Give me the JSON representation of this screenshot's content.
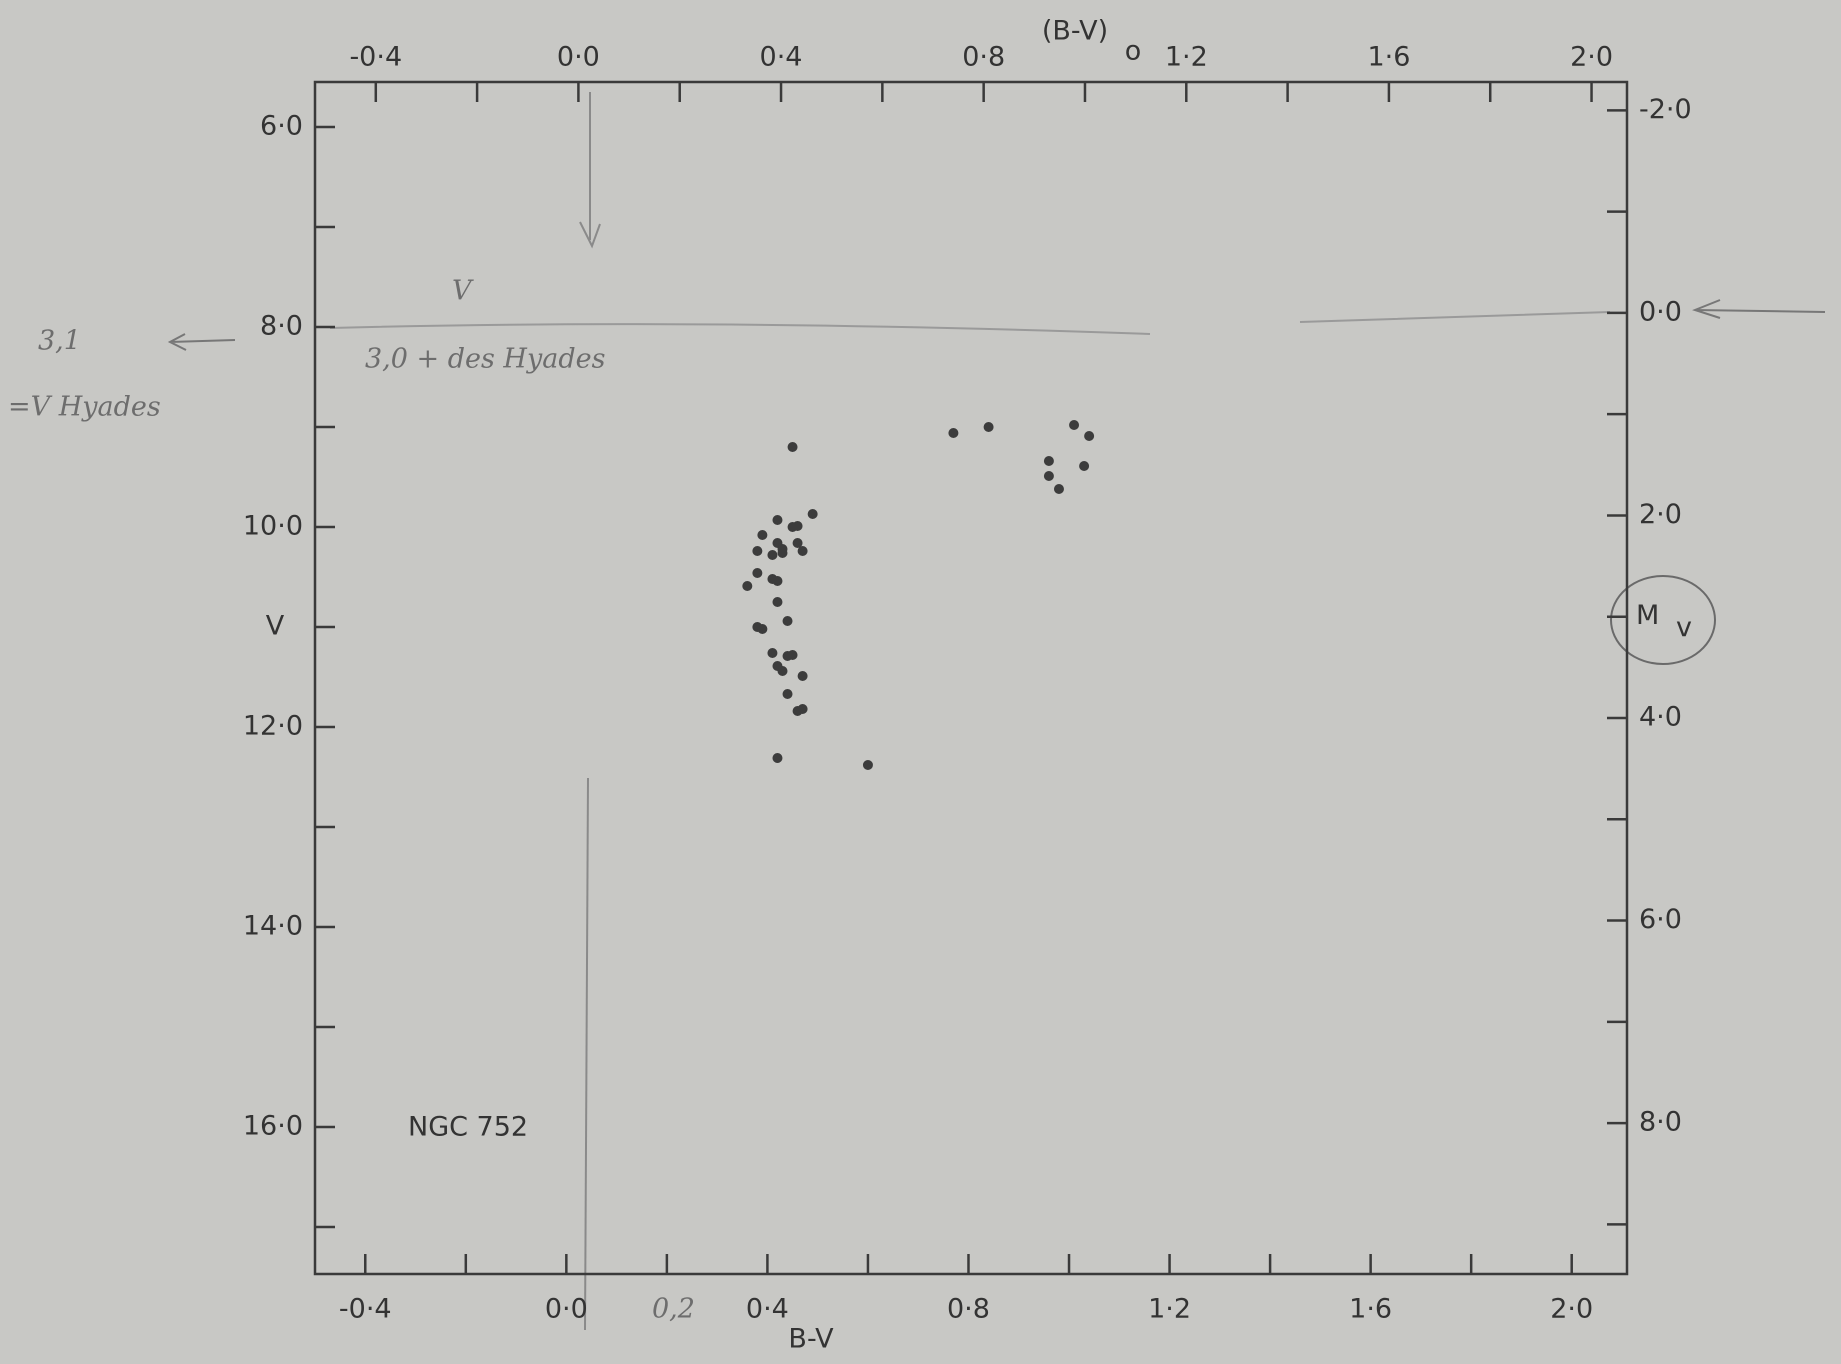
{
  "chart_data": {
    "type": "scatter",
    "xlabel": "B-V",
    "ylabel": "V",
    "x2label": "(B-V)",
    "x2label_sub": "o",
    "y2label": "M",
    "y2label_sub": "v",
    "color": "#3c3c3c",
    "x": [
      0.45,
      0.42,
      0.45,
      0.46,
      0.49,
      0.39,
      0.38,
      0.42,
      0.43,
      0.41,
      0.43,
      0.46,
      0.47,
      0.38,
      0.41,
      0.42,
      0.36,
      0.42,
      0.44,
      0.38,
      0.39,
      0.41,
      0.44,
      0.45,
      0.42,
      0.43,
      0.47,
      0.44,
      0.46,
      0.47,
      0.42,
      0.6,
      0.77,
      0.84,
      1.01,
      1.04,
      0.96,
      0.96,
      1.03,
      0.98
    ],
    "values": [
      9.2,
      9.93,
      10.0,
      9.99,
      9.87,
      10.08,
      10.24,
      10.16,
      10.22,
      10.28,
      10.26,
      10.16,
      10.24,
      10.46,
      10.52,
      10.54,
      10.59,
      10.75,
      10.94,
      11.0,
      11.02,
      11.26,
      11.29,
      11.28,
      11.39,
      11.44,
      11.49,
      11.67,
      11.84,
      11.82,
      12.31,
      12.38,
      9.06,
      9.0,
      8.98,
      9.09,
      9.34,
      9.49,
      9.39,
      9.62
    ],
    "xlim": [
      -0.5,
      2.11
    ],
    "ylim": [
      17.47,
      5.55
    ],
    "x2lim": [
      -0.52,
      2.07
    ],
    "y2lim": [
      9.49,
      -2.28
    ],
    "xticks": [
      {
        "value": -0.4,
        "label": "-0·4"
      },
      {
        "value": 0,
        "label": "0·0"
      },
      {
        "value": 0.4,
        "label": "0·4"
      },
      {
        "value": 0.8,
        "label": "0·8"
      },
      {
        "value": 1.2,
        "label": "1·2"
      },
      {
        "value": 1.6,
        "label": "1·6"
      },
      {
        "value": 2.0,
        "label": "2·0"
      }
    ],
    "xminorticks": [
      -0.2,
      0.2,
      0.6,
      1.0,
      1.4,
      1.8
    ],
    "yticks": [
      {
        "value": 6,
        "label": "6·0"
      },
      {
        "value": 8,
        "label": "8·0"
      },
      {
        "value": 10,
        "label": "10·0"
      },
      {
        "value": 12,
        "label": "12·0"
      },
      {
        "value": 14,
        "label": "14·0"
      },
      {
        "value": 16,
        "label": "16·0"
      }
    ],
    "yminorticks": [
      7,
      9,
      11,
      13,
      15,
      17
    ],
    "x2ticks": [
      {
        "value": -0.4,
        "label": "-0·4"
      },
      {
        "value": 0,
        "label": "0·0"
      },
      {
        "value": 0.4,
        "label": "0·4"
      },
      {
        "value": 0.8,
        "label": "0·8"
      },
      {
        "value": 1.2,
        "label": "1·2"
      },
      {
        "value": 1.6,
        "label": "1·6"
      },
      {
        "value": 2.0,
        "label": "2·0"
      }
    ],
    "x2minorticks": [
      -0.2,
      0.2,
      0.6,
      1.0,
      1.4,
      1.8
    ],
    "y2ticks": [
      {
        "value": -2,
        "label": "-2·0"
      },
      {
        "value": 0,
        "label": "0·0"
      },
      {
        "value": 2,
        "label": "2·0"
      },
      {
        "value": 4,
        "label": "4·0"
      },
      {
        "value": 6,
        "label": "6·0"
      },
      {
        "value": 8,
        "label": "8·0"
      }
    ],
    "y2minorticks": [
      -1,
      1,
      3,
      5,
      7,
      9
    ],
    "annotations": [
      "NGC 752",
      "3,1",
      "=V Hyades",
      "V",
      "3,0 + des Hyades",
      "0,2"
    ]
  }
}
